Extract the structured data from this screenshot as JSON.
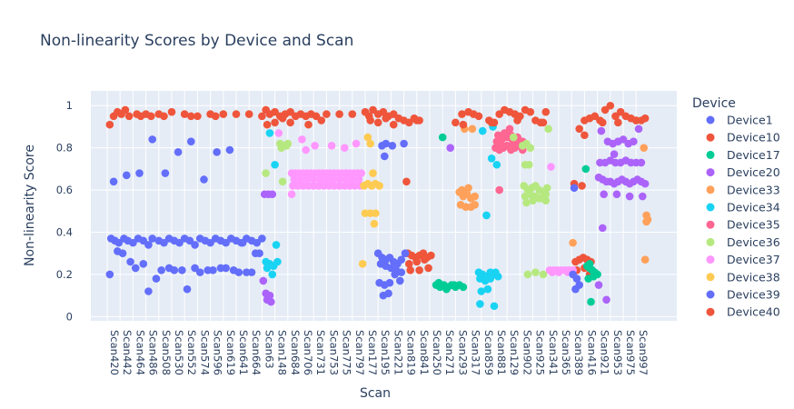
{
  "chart_data": {
    "type": "scatter",
    "title": "Non-linearity Scores by Device and Scan",
    "xlabel": "Scan",
    "ylabel": "Non-linearity Score",
    "ylim": [
      -0.02,
      1.07
    ],
    "yticks": [
      0,
      0.2,
      0.4,
      0.6,
      0.8,
      1
    ],
    "ytick_labels": [
      "0",
      "0.2",
      "0.4",
      "0.6",
      "0.8",
      "1"
    ],
    "xtick_labels": [
      "Scan420",
      "Scan442",
      "Scan464",
      "Scan486",
      "Scan508",
      "Scan530",
      "Scan552",
      "Scan574",
      "Scan596",
      "Scan619",
      "Scan641",
      "Scan664",
      "Scan63",
      "Scan148",
      "Scan684",
      "Scan706",
      "Scan731",
      "Scan753",
      "Scan775",
      "Scan797",
      "Scan177",
      "Scan195",
      "Scan221",
      "Scan819",
      "Scan841",
      "Scan250",
      "Scan271",
      "Scan293",
      "Scan317",
      "Scan859",
      "Scan881",
      "Scan129",
      "Scan902",
      "Scan925",
      "Scan341",
      "Scan365",
      "Scan389",
      "Scan416",
      "Scan921",
      "Scan953",
      "Scan975",
      "Scan997"
    ],
    "grid": true,
    "legend": {
      "title": "Device",
      "placement": "right"
    },
    "series": [
      {
        "name": "Device1",
        "color": "#636efa",
        "x": [
          0.3,
          0.6,
          0.9,
          1.3,
          1.6,
          2.0,
          2.4,
          2.8,
          3.2,
          3.5,
          4.0,
          4.4,
          4.8,
          5.2,
          5.6,
          6.0,
          6.4,
          6.8,
          7.2,
          7.6,
          8.0,
          8.4,
          8.8,
          9.2,
          9.6,
          10.0,
          10.4,
          10.8,
          11.2,
          11.6,
          12.0,
          0.5,
          1.5,
          2.5,
          3.5,
          4.5,
          5.5,
          6.5,
          7.5,
          8.5,
          9.5,
          10.5,
          11.5,
          0.2,
          1.2,
          2.2,
          3.2,
          4.2,
          5.2,
          6.2,
          7.2,
          8.2,
          9.2,
          10.2,
          11.2,
          0.8,
          1.8,
          2.8,
          3.8,
          4.8,
          5.8,
          6.8,
          7.8,
          8.8,
          9.8,
          10.8,
          11.8
        ],
        "y": [
          0.37,
          0.36,
          0.35,
          0.37,
          0.36,
          0.35,
          0.37,
          0.36,
          0.34,
          0.37,
          0.36,
          0.35,
          0.37,
          0.36,
          0.35,
          0.37,
          0.36,
          0.34,
          0.37,
          0.36,
          0.35,
          0.37,
          0.36,
          0.35,
          0.37,
          0.36,
          0.35,
          0.37,
          0.36,
          0.35,
          0.37,
          0.64,
          0.67,
          0.68,
          0.84,
          0.68,
          0.78,
          0.83,
          0.65,
          0.78,
          0.79,
          0.35,
          0.3,
          0.2,
          0.3,
          0.23,
          0.12,
          0.22,
          0.22,
          0.13,
          0.21,
          0.22,
          0.23,
          0.21,
          0.21,
          0.31,
          0.26,
          0.25,
          0.18,
          0.23,
          0.22,
          0.23,
          0.22,
          0.23,
          0.22,
          0.21,
          0.3
        ]
      },
      {
        "name": "Device10",
        "color": "#EF553B",
        "x": [
          23.3,
          23.6,
          23.9,
          24.2,
          24.5,
          24.8,
          25.1,
          23.4,
          24.0,
          24.6,
          23.5,
          24.2,
          24.9,
          23.2,
          36.3,
          36.6,
          36.9,
          37.2,
          37.5,
          36.4,
          37.0,
          36.2,
          36.8,
          37.4
        ],
        "y": [
          0.3,
          0.29,
          0.28,
          0.29,
          0.3,
          0.28,
          0.29,
          0.25,
          0.26,
          0.27,
          0.22,
          0.22,
          0.23,
          0.64,
          0.26,
          0.27,
          0.28,
          0.27,
          0.26,
          0.22,
          0.23,
          0.63,
          0.62,
          0.2
        ]
      },
      {
        "name": "Device17",
        "color": "#00cc96",
        "x": [
          25.5,
          25.8,
          26.1,
          26.4,
          26.7,
          27.0,
          27.3,
          27.6,
          25.7,
          26.3,
          26.9,
          26.0,
          37.2,
          37.4,
          37.6,
          37.8,
          38.0,
          37.3,
          37.7,
          37.5,
          37.1,
          37.4
        ],
        "y": [
          0.15,
          0.14,
          0.15,
          0.14,
          0.15,
          0.14,
          0.15,
          0.14,
          0.16,
          0.13,
          0.15,
          0.85,
          0.24,
          0.23,
          0.22,
          0.21,
          0.2,
          0.18,
          0.19,
          0.07,
          0.7,
          0.25
        ]
      },
      {
        "name": "Device20",
        "color": "#ab63fa",
        "x": [
          12.2,
          12.5,
          12.8,
          12.3,
          12.6,
          12.4,
          12.7,
          12.1,
          26.6,
          38.1,
          38.4,
          38.7,
          39.0,
          39.3,
          39.6,
          39.9,
          40.2,
          40.5,
          40.8,
          41.1,
          41.4,
          41.7,
          38.2,
          38.6,
          39.0,
          39.4,
          39.8,
          40.2,
          40.6,
          41.0,
          41.4,
          38.5,
          39.5,
          40.5,
          41.5,
          38.3,
          38.8,
          39.2,
          39.6,
          40.0,
          40.4,
          40.8,
          41.2,
          38.4,
          38.1,
          38.7,
          39.3
        ],
        "y": [
          0.58,
          0.58,
          0.58,
          0.11,
          0.1,
          0.08,
          0.07,
          0.17,
          0.8,
          0.66,
          0.65,
          0.64,
          0.64,
          0.63,
          0.64,
          0.65,
          0.64,
          0.63,
          0.64,
          0.65,
          0.64,
          0.63,
          0.73,
          0.73,
          0.74,
          0.73,
          0.73,
          0.74,
          0.73,
          0.73,
          0.73,
          0.58,
          0.58,
          0.57,
          0.57,
          0.88,
          0.83,
          0.82,
          0.83,
          0.84,
          0.82,
          0.83,
          0.89,
          0.42,
          0.15,
          0.08,
          0.77
        ]
      },
      {
        "name": "Device33",
        "color": "#FFA15A",
        "x": [
          27.3,
          27.6,
          27.9,
          28.2,
          28.5,
          27.4,
          27.8,
          28.2,
          27.5,
          28.0,
          28.5,
          27.7,
          28.3,
          36.1,
          41.6,
          41.8,
          41.9,
          41.7,
          41.8
        ],
        "y": [
          0.59,
          0.57,
          0.58,
          0.56,
          0.57,
          0.53,
          0.52,
          0.52,
          0.6,
          0.61,
          0.53,
          0.89,
          0.89,
          0.35,
          0.8,
          0.48,
          0.46,
          0.27,
          0.45
        ]
      },
      {
        "name": "Device34",
        "color": "#19d3f3",
        "x": [
          12.3,
          12.6,
          12.9,
          13.2,
          12.4,
          12.8,
          13.1,
          12.6,
          13.0,
          28.8,
          29.1,
          29.4,
          29.7,
          30.0,
          30.3,
          28.9,
          29.3,
          29.7,
          30.1,
          29.0,
          29.5,
          30.0,
          28.9,
          29.4,
          29.8,
          30.2,
          29.1,
          29.9
        ],
        "y": [
          0.26,
          0.25,
          0.24,
          0.26,
          0.23,
          0.2,
          0.34,
          0.87,
          0.72,
          0.21,
          0.2,
          0.19,
          0.21,
          0.2,
          0.19,
          0.18,
          0.17,
          0.18,
          0.21,
          0.12,
          0.13,
          0.05,
          0.06,
          0.48,
          0.75,
          0.72,
          0.88,
          0.9
        ]
      },
      {
        "name": "Device35",
        "color": "#FF6692",
        "x": [
          30.1,
          30.4,
          30.7,
          31.0,
          31.3,
          31.6,
          31.9,
          32.2,
          30.2,
          30.6,
          31.0,
          31.4,
          31.8,
          32.2,
          30.3,
          30.8,
          31.3,
          31.8,
          30.5,
          31.0,
          31.5,
          32.0,
          31.2,
          30.4
        ],
        "y": [
          0.8,
          0.79,
          0.8,
          0.81,
          0.79,
          0.8,
          0.81,
          0.79,
          0.83,
          0.84,
          0.85,
          0.84,
          0.85,
          0.83,
          0.86,
          0.87,
          0.86,
          0.85,
          0.82,
          0.81,
          0.82,
          0.83,
          0.89,
          0.6
        ]
      },
      {
        "name": "Device36",
        "color": "#B6E880",
        "x": [
          13.4,
          13.7,
          14.0,
          13.5,
          13.9,
          13.6,
          12.3,
          32.3,
          32.6,
          32.9,
          33.2,
          33.5,
          33.8,
          34.1,
          32.4,
          32.8,
          33.2,
          33.6,
          34.0,
          32.5,
          33.0,
          33.5,
          34.0,
          32.6,
          33.2,
          33.8,
          32.2,
          32.5,
          32.8,
          32.4,
          32.7,
          31.5,
          34.2
        ],
        "y": [
          0.82,
          0.81,
          0.82,
          0.8,
          0.81,
          0.64,
          0.68,
          0.62,
          0.6,
          0.61,
          0.62,
          0.6,
          0.59,
          0.61,
          0.57,
          0.58,
          0.57,
          0.56,
          0.58,
          0.54,
          0.55,
          0.56,
          0.55,
          0.2,
          0.21,
          0.2,
          0.81,
          0.82,
          0.8,
          0.72,
          0.72,
          0.85,
          0.89
        ]
      },
      {
        "name": "Device37",
        "color": "#FF97FF",
        "x": [
          14.3,
          14.6,
          14.9,
          15.2,
          15.5,
          15.8,
          16.1,
          16.4,
          16.7,
          17.0,
          17.3,
          17.6,
          17.9,
          18.2,
          18.5,
          18.8,
          19.1,
          19.4,
          19.7,
          14.4,
          14.8,
          15.2,
          15.6,
          16.0,
          16.4,
          16.8,
          17.2,
          17.6,
          18.0,
          18.4,
          18.8,
          19.2,
          19.6,
          14.5,
          15.0,
          15.5,
          16.0,
          16.5,
          17.0,
          17.5,
          18.0,
          18.5,
          19.0,
          19.5,
          15.1,
          15.4,
          16.1,
          17.4,
          18.4,
          19.3,
          34.3,
          34.6,
          34.9,
          35.2,
          35.5,
          35.8,
          36.1,
          34.5,
          35.0,
          35.7,
          34.4,
          14.3,
          13.3
        ],
        "y": [
          0.68,
          0.68,
          0.68,
          0.68,
          0.68,
          0.68,
          0.68,
          0.68,
          0.68,
          0.68,
          0.68,
          0.68,
          0.68,
          0.68,
          0.68,
          0.68,
          0.68,
          0.68,
          0.68,
          0.62,
          0.62,
          0.62,
          0.62,
          0.62,
          0.62,
          0.62,
          0.62,
          0.62,
          0.62,
          0.62,
          0.62,
          0.62,
          0.62,
          0.65,
          0.65,
          0.65,
          0.65,
          0.65,
          0.65,
          0.65,
          0.65,
          0.65,
          0.65,
          0.65,
          0.84,
          0.79,
          0.81,
          0.81,
          0.8,
          0.82,
          0.22,
          0.22,
          0.22,
          0.22,
          0.22,
          0.22,
          0.22,
          0.21,
          0.21,
          0.21,
          0.71,
          0.58,
          0.87
        ]
      },
      {
        "name": "Device38",
        "color": "#FECB52",
        "x": [
          19.9,
          20.2,
          20.5,
          20.8,
          21.1,
          20.0,
          20.4,
          20.8,
          20.2,
          20.6,
          19.8,
          20.7,
          20.4
        ],
        "y": [
          0.62,
          0.63,
          0.62,
          0.63,
          0.62,
          0.49,
          0.49,
          0.49,
          0.85,
          0.68,
          0.25,
          0.44,
          0.82
        ]
      },
      {
        "name": "Device39",
        "color": "#636efa",
        "x": [
          21.0,
          21.3,
          21.6,
          21.9,
          22.2,
          22.5,
          22.8,
          23.1,
          21.2,
          21.6,
          22.0,
          22.4,
          22.8,
          21.1,
          21.5,
          21.9,
          22.3,
          22.7,
          21.4,
          21.8,
          21.3,
          21.6,
          22.1,
          23.0,
          21.5,
          36.1,
          36.4,
          36.3,
          36.6,
          36.2
        ],
        "y": [
          0.3,
          0.28,
          0.27,
          0.28,
          0.26,
          0.25,
          0.27,
          0.3,
          0.25,
          0.24,
          0.23,
          0.22,
          0.21,
          0.16,
          0.15,
          0.16,
          0.2,
          0.17,
          0.1,
          0.11,
          0.81,
          0.82,
          0.81,
          0.82,
          0.76,
          0.2,
          0.18,
          0.13,
          0.15,
          0.61
        ]
      },
      {
        "name": "Device40",
        "color": "#EF553B",
        "x": [
          0.2,
          0.5,
          0.8,
          1.1,
          1.4,
          1.7,
          2.3,
          2.6,
          3.0,
          3.4,
          4.0,
          4.4,
          5.0,
          6.0,
          6.5,
          7.0,
          8.0,
          8.4,
          9.0,
          10.0,
          11.0,
          12.0,
          12.3,
          12.6,
          13.0,
          13.4,
          13.8,
          14.2,
          14.6,
          15.0,
          15.4,
          15.8,
          16.2,
          17.0,
          18.0,
          19.0,
          20.0,
          20.3,
          20.6,
          21.0,
          21.4,
          21.8,
          22.2,
          22.6,
          23.0,
          23.4,
          23.8,
          24.2,
          27.0,
          27.5,
          28.0,
          28.4,
          28.8,
          29.6,
          30.0,
          30.4,
          30.8,
          31.2,
          31.6,
          32.0,
          32.4,
          32.8,
          33.2,
          33.6,
          34.0,
          36.6,
          37.0,
          37.4,
          37.8,
          38.2,
          38.6,
          39.0,
          39.4,
          39.8,
          40.2,
          40.6,
          41.0,
          41.4,
          41.7,
          12.4,
          13.0,
          13.6,
          14.2,
          15.6,
          16.6,
          20.4,
          21.0,
          21.6,
          22.2,
          24.0,
          27.6,
          29.8,
          31.8,
          33.8,
          37.0,
          38.4,
          39.6,
          41.0
        ],
        "y": [
          0.91,
          0.95,
          0.97,
          0.96,
          0.98,
          0.95,
          0.96,
          0.95,
          0.96,
          0.95,
          0.96,
          0.95,
          0.97,
          0.96,
          0.95,
          0.95,
          0.96,
          0.95,
          0.96,
          0.96,
          0.96,
          0.95,
          0.98,
          0.96,
          0.97,
          0.95,
          0.96,
          0.97,
          0.95,
          0.96,
          0.95,
          0.96,
          0.95,
          0.96,
          0.96,
          0.96,
          0.97,
          0.95,
          0.98,
          0.96,
          0.97,
          0.95,
          0.96,
          0.94,
          0.93,
          0.92,
          0.94,
          0.93,
          0.92,
          0.96,
          0.97,
          0.96,
          0.95,
          0.93,
          0.92,
          0.96,
          0.98,
          0.97,
          0.96,
          0.95,
          0.98,
          0.97,
          0.93,
          0.92,
          0.97,
          0.89,
          0.93,
          0.94,
          0.95,
          0.93,
          0.98,
          1.0,
          0.95,
          0.97,
          0.95,
          0.94,
          0.93,
          0.93,
          0.94,
          0.91,
          0.92,
          0.94,
          0.92,
          0.91,
          0.93,
          0.93,
          0.92,
          0.94,
          0.91,
          0.93,
          0.91,
          0.92,
          0.93,
          0.92,
          0.86,
          0.92,
          0.92,
          0.93
        ]
      }
    ]
  }
}
